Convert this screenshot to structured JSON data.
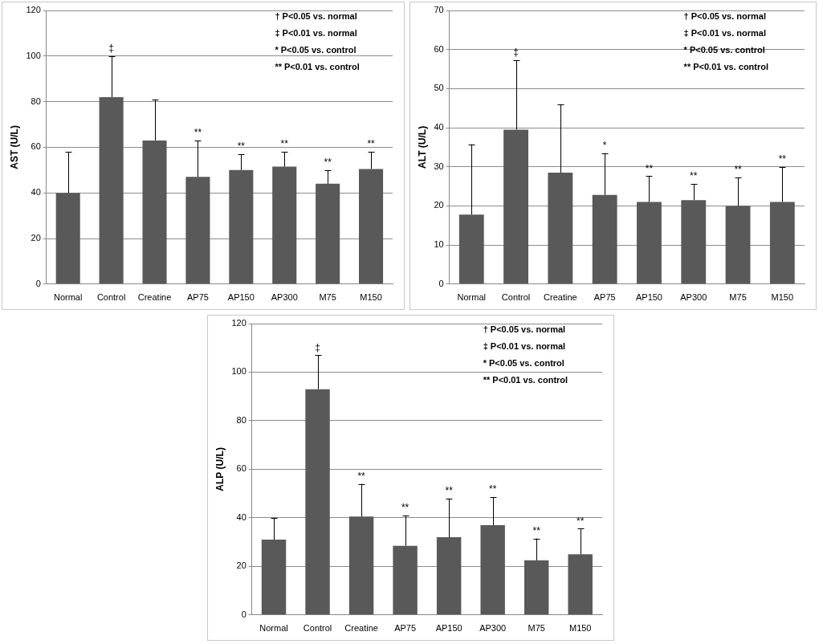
{
  "chart_data": [
    {
      "type": "bar",
      "y_label": "AST (U/L)",
      "color": "#595959",
      "grid": true,
      "categories": [
        "Normal",
        "Control",
        "Creatine",
        "AP75",
        "AP150",
        "AP300",
        "M75",
        "M150"
      ],
      "values": [
        40,
        82,
        63,
        47,
        50,
        51.5,
        44,
        50.5
      ],
      "errors": [
        18,
        18,
        18,
        16,
        7,
        6.5,
        6,
        7.5
      ],
      "significance": [
        null,
        "‡",
        null,
        "**",
        "**",
        "**",
        "**",
        "**"
      ],
      "annotations": [
        "† P<0.05 vs. normal",
        "‡ P<0.01 vs. normal",
        "* P<0.05 vs. control",
        "** P<0.01 vs. control"
      ],
      "ylim": [
        0,
        120
      ],
      "yticks": [
        0,
        20,
        40,
        60,
        80,
        100,
        120
      ]
    },
    {
      "type": "bar",
      "y_label": "ALT (U/L)",
      "color": "#595959",
      "grid": true,
      "categories": [
        "Normal",
        "Control",
        "Creatine",
        "AP75",
        "AP150",
        "AP300",
        "M75",
        "M150"
      ],
      "values": [
        17.8,
        39.5,
        28.5,
        22.8,
        21,
        21.5,
        20,
        21
      ],
      "errors": [
        18,
        17.8,
        17.5,
        10.7,
        6.6,
        4.1,
        7.3,
        9
      ],
      "significance": [
        null,
        "‡",
        null,
        "*",
        "**",
        "**",
        "**",
        "**"
      ],
      "annotations": [
        "† P<0.05 vs. normal",
        "‡ P<0.01 vs. normal",
        "* P<0.05 vs. control",
        "** P<0.01 vs. control"
      ],
      "ylim": [
        0,
        70
      ],
      "yticks": [
        0,
        10,
        20,
        30,
        40,
        50,
        60,
        70
      ]
    },
    {
      "type": "bar",
      "y_label": "ALP (U/L)",
      "color": "#595959",
      "grid": true,
      "categories": [
        "Normal",
        "Control",
        "Creatine",
        "AP75",
        "AP150",
        "AP300",
        "M75",
        "M150"
      ],
      "values": [
        31,
        93,
        40.5,
        28.5,
        32,
        37,
        22.5,
        25
      ],
      "errors": [
        9,
        14,
        13.5,
        12.5,
        16,
        11.5,
        9,
        10.5
      ],
      "significance": [
        null,
        "‡",
        "**",
        "**",
        "**",
        "**",
        "**",
        "**"
      ],
      "annotations": [
        "† P<0.05 vs. normal",
        "‡ P<0.01 vs. normal",
        "* P<0.05 vs. control",
        "** P<0.01 vs. control"
      ],
      "ylim": [
        0,
        120
      ],
      "yticks": [
        0,
        20,
        40,
        60,
        80,
        100,
        120
      ]
    }
  ]
}
